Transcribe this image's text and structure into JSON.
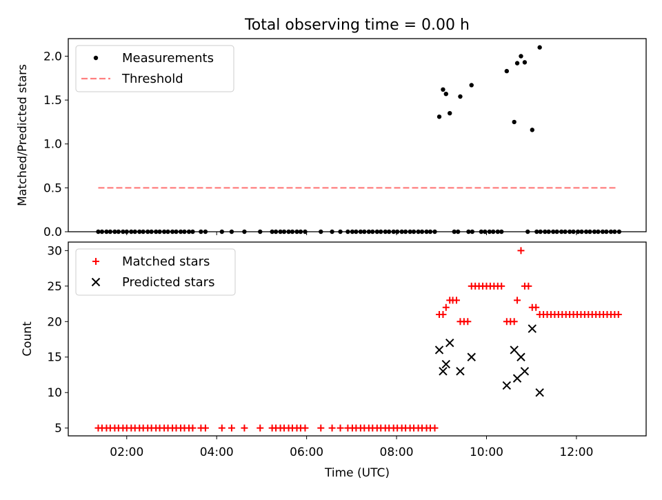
{
  "figure": {
    "title": "Total observing time = 0.00 h"
  },
  "chart_data": [
    {
      "type": "scatter",
      "ylabel": "Matched/Predicted stars",
      "ylim": [
        0,
        2.2
      ],
      "xlim_hours": [
        0.7,
        13.55
      ],
      "yticks": [
        0.0,
        0.5,
        1.0,
        1.5,
        2.0
      ],
      "ytick_labels": [
        "0.0",
        "0.5",
        "1.0",
        "1.5",
        "2.0"
      ],
      "xtick_labels_visible": false,
      "legend": {
        "placement": "upper-left",
        "entries": [
          {
            "label": "Measurements",
            "marker": "dot",
            "color": "#000000"
          },
          {
            "label": "Threshold",
            "style": "dashed",
            "color": "#ff7f7f"
          }
        ]
      },
      "threshold": {
        "value": 0.5,
        "x_start": "01:22",
        "x_end": "12:55"
      },
      "series": [
        {
          "name": "Measurements",
          "color": "#000000",
          "points": [
            [
              "01:22",
              0
            ],
            [
              "01:27",
              0
            ],
            [
              "01:33",
              0
            ],
            [
              "01:38",
              0
            ],
            [
              "01:44",
              0
            ],
            [
              "01:49",
              0
            ],
            [
              "01:55",
              0
            ],
            [
              "02:00",
              0
            ],
            [
              "02:06",
              0
            ],
            [
              "02:11",
              0
            ],
            [
              "02:17",
              0
            ],
            [
              "02:22",
              0
            ],
            [
              "02:28",
              0
            ],
            [
              "02:33",
              0
            ],
            [
              "02:39",
              0
            ],
            [
              "02:44",
              0
            ],
            [
              "02:50",
              0
            ],
            [
              "02:55",
              0
            ],
            [
              "03:01",
              0
            ],
            [
              "03:06",
              0
            ],
            [
              "03:12",
              0
            ],
            [
              "03:17",
              0
            ],
            [
              "03:23",
              0
            ],
            [
              "03:28",
              0
            ],
            [
              "03:39",
              0
            ],
            [
              "03:45",
              0
            ],
            [
              "04:07",
              0
            ],
            [
              "04:20",
              0
            ],
            [
              "04:37",
              0
            ],
            [
              "04:58",
              0
            ],
            [
              "05:14",
              0
            ],
            [
              "05:19",
              0
            ],
            [
              "05:25",
              0
            ],
            [
              "05:30",
              0
            ],
            [
              "05:36",
              0
            ],
            [
              "05:41",
              0
            ],
            [
              "05:47",
              0
            ],
            [
              "05:52",
              0
            ],
            [
              "05:58",
              0
            ],
            [
              "06:19",
              0
            ],
            [
              "06:34",
              0
            ],
            [
              "06:45",
              0
            ],
            [
              "06:55",
              0
            ],
            [
              "07:01",
              0
            ],
            [
              "07:06",
              0
            ],
            [
              "07:12",
              0
            ],
            [
              "07:17",
              0
            ],
            [
              "07:23",
              0
            ],
            [
              "07:28",
              0
            ],
            [
              "07:34",
              0
            ],
            [
              "07:39",
              0
            ],
            [
              "07:45",
              0
            ],
            [
              "07:50",
              0
            ],
            [
              "07:56",
              0
            ],
            [
              "08:01",
              0
            ],
            [
              "08:07",
              0
            ],
            [
              "08:12",
              0
            ],
            [
              "08:18",
              0
            ],
            [
              "08:23",
              0
            ],
            [
              "08:29",
              0
            ],
            [
              "08:34",
              0
            ],
            [
              "08:40",
              0
            ],
            [
              "08:45",
              0
            ],
            [
              "08:51",
              0
            ],
            [
              "09:17",
              0
            ],
            [
              "09:22",
              0
            ],
            [
              "09:36",
              0
            ],
            [
              "09:41",
              0
            ],
            [
              "09:53",
              0
            ],
            [
              "09:58",
              0
            ],
            [
              "10:04",
              0
            ],
            [
              "10:09",
              0
            ],
            [
              "10:15",
              0
            ],
            [
              "10:20",
              0
            ],
            [
              "10:55",
              0
            ],
            [
              "11:07",
              0
            ],
            [
              "11:12",
              0
            ],
            [
              "11:18",
              0
            ],
            [
              "11:23",
              0
            ],
            [
              "11:29",
              0
            ],
            [
              "11:34",
              0
            ],
            [
              "11:40",
              0
            ],
            [
              "11:45",
              0
            ],
            [
              "11:51",
              0
            ],
            [
              "11:56",
              0
            ],
            [
              "12:02",
              0
            ],
            [
              "12:07",
              0
            ],
            [
              "12:13",
              0
            ],
            [
              "12:18",
              0
            ],
            [
              "12:24",
              0
            ],
            [
              "12:29",
              0
            ],
            [
              "12:35",
              0
            ],
            [
              "12:40",
              0
            ],
            [
              "12:46",
              0
            ],
            [
              "12:51",
              0
            ],
            [
              "12:57",
              0
            ],
            [
              "08:57",
              1.31
            ],
            [
              "09:02",
              1.62
            ],
            [
              "09:06",
              1.57
            ],
            [
              "09:11",
              1.35
            ],
            [
              "09:25",
              1.54
            ],
            [
              "09:40",
              1.67
            ],
            [
              "10:27",
              1.83
            ],
            [
              "10:37",
              1.25
            ],
            [
              "10:41",
              1.92
            ],
            [
              "10:46",
              2.0
            ],
            [
              "10:51",
              1.93
            ],
            [
              "11:01",
              1.16
            ],
            [
              "11:11",
              2.1
            ]
          ]
        }
      ]
    },
    {
      "type": "scatter",
      "ylabel": "Count",
      "xlabel": "Time (UTC)",
      "ylim": [
        3.9,
        31.2
      ],
      "xlim_hours": [
        0.7,
        13.55
      ],
      "yticks": [
        5,
        10,
        15,
        20,
        25,
        30
      ],
      "ytick_labels": [
        "5",
        "10",
        "15",
        "20",
        "25",
        "30"
      ],
      "xticks": [
        "02:00",
        "04:00",
        "06:00",
        "08:00",
        "10:00",
        "12:00"
      ],
      "xtick_labels": [
        "02:00",
        "04:00",
        "06:00",
        "08:00",
        "10:00",
        "12:00"
      ],
      "legend": {
        "placement": "upper-left",
        "entries": [
          {
            "label": "Matched stars",
            "marker": "plus",
            "color": "#ff0000"
          },
          {
            "label": "Predicted stars",
            "marker": "x",
            "color": "#000000"
          }
        ]
      },
      "series": [
        {
          "name": "Matched stars",
          "color": "#ff0000",
          "marker": "plus",
          "points": [
            [
              "01:22",
              5
            ],
            [
              "01:27",
              5
            ],
            [
              "01:33",
              5
            ],
            [
              "01:38",
              5
            ],
            [
              "01:44",
              5
            ],
            [
              "01:49",
              5
            ],
            [
              "01:55",
              5
            ],
            [
              "02:00",
              5
            ],
            [
              "02:06",
              5
            ],
            [
              "02:11",
              5
            ],
            [
              "02:17",
              5
            ],
            [
              "02:22",
              5
            ],
            [
              "02:28",
              5
            ],
            [
              "02:33",
              5
            ],
            [
              "02:39",
              5
            ],
            [
              "02:44",
              5
            ],
            [
              "02:50",
              5
            ],
            [
              "02:55",
              5
            ],
            [
              "03:01",
              5
            ],
            [
              "03:06",
              5
            ],
            [
              "03:12",
              5
            ],
            [
              "03:17",
              5
            ],
            [
              "03:23",
              5
            ],
            [
              "03:28",
              5
            ],
            [
              "03:39",
              5
            ],
            [
              "03:45",
              5
            ],
            [
              "04:07",
              5
            ],
            [
              "04:20",
              5
            ],
            [
              "04:37",
              5
            ],
            [
              "04:58",
              5
            ],
            [
              "05:14",
              5
            ],
            [
              "05:19",
              5
            ],
            [
              "05:25",
              5
            ],
            [
              "05:30",
              5
            ],
            [
              "05:36",
              5
            ],
            [
              "05:41",
              5
            ],
            [
              "05:47",
              5
            ],
            [
              "05:52",
              5
            ],
            [
              "05:58",
              5
            ],
            [
              "06:19",
              5
            ],
            [
              "06:34",
              5
            ],
            [
              "06:45",
              5
            ],
            [
              "06:55",
              5
            ],
            [
              "07:01",
              5
            ],
            [
              "07:06",
              5
            ],
            [
              "07:12",
              5
            ],
            [
              "07:17",
              5
            ],
            [
              "07:23",
              5
            ],
            [
              "07:28",
              5
            ],
            [
              "07:34",
              5
            ],
            [
              "07:39",
              5
            ],
            [
              "07:45",
              5
            ],
            [
              "07:50",
              5
            ],
            [
              "07:56",
              5
            ],
            [
              "08:01",
              5
            ],
            [
              "08:07",
              5
            ],
            [
              "08:12",
              5
            ],
            [
              "08:18",
              5
            ],
            [
              "08:23",
              5
            ],
            [
              "08:29",
              5
            ],
            [
              "08:34",
              5
            ],
            [
              "08:40",
              5
            ],
            [
              "08:45",
              5
            ],
            [
              "08:51",
              5
            ],
            [
              "08:57",
              21
            ],
            [
              "09:02",
              21
            ],
            [
              "09:06",
              22
            ],
            [
              "09:11",
              23
            ],
            [
              "09:15",
              23
            ],
            [
              "09:20",
              23
            ],
            [
              "09:25",
              20
            ],
            [
              "09:30",
              20
            ],
            [
              "09:35",
              20
            ],
            [
              "09:40",
              25
            ],
            [
              "09:45",
              25
            ],
            [
              "09:50",
              25
            ],
            [
              "09:55",
              25
            ],
            [
              "10:00",
              25
            ],
            [
              "10:05",
              25
            ],
            [
              "10:10",
              25
            ],
            [
              "10:15",
              25
            ],
            [
              "10:20",
              25
            ],
            [
              "10:27",
              20
            ],
            [
              "10:32",
              20
            ],
            [
              "10:37",
              20
            ],
            [
              "10:41",
              23
            ],
            [
              "10:46",
              30
            ],
            [
              "10:51",
              25
            ],
            [
              "10:56",
              25
            ],
            [
              "11:01",
              22
            ],
            [
              "11:06",
              22
            ],
            [
              "11:11",
              21
            ],
            [
              "11:16",
              21
            ],
            [
              "11:21",
              21
            ],
            [
              "11:26",
              21
            ],
            [
              "11:31",
              21
            ],
            [
              "11:36",
              21
            ],
            [
              "11:41",
              21
            ],
            [
              "11:46",
              21
            ],
            [
              "11:51",
              21
            ],
            [
              "11:56",
              21
            ],
            [
              "12:01",
              21
            ],
            [
              "12:06",
              21
            ],
            [
              "12:11",
              21
            ],
            [
              "12:16",
              21
            ],
            [
              "12:21",
              21
            ],
            [
              "12:26",
              21
            ],
            [
              "12:31",
              21
            ],
            [
              "12:36",
              21
            ],
            [
              "12:41",
              21
            ],
            [
              "12:46",
              21
            ],
            [
              "12:51",
              21
            ],
            [
              "12:56",
              21
            ]
          ]
        },
        {
          "name": "Predicted stars",
          "color": "#000000",
          "marker": "x",
          "points": [
            [
              "08:57",
              16
            ],
            [
              "09:02",
              13
            ],
            [
              "09:06",
              14
            ],
            [
              "09:11",
              17
            ],
            [
              "09:25",
              13
            ],
            [
              "09:40",
              15
            ],
            [
              "10:27",
              11
            ],
            [
              "10:37",
              16
            ],
            [
              "10:41",
              12
            ],
            [
              "10:46",
              15
            ],
            [
              "10:51",
              13
            ],
            [
              "11:01",
              19
            ],
            [
              "11:11",
              10
            ]
          ]
        }
      ]
    }
  ]
}
